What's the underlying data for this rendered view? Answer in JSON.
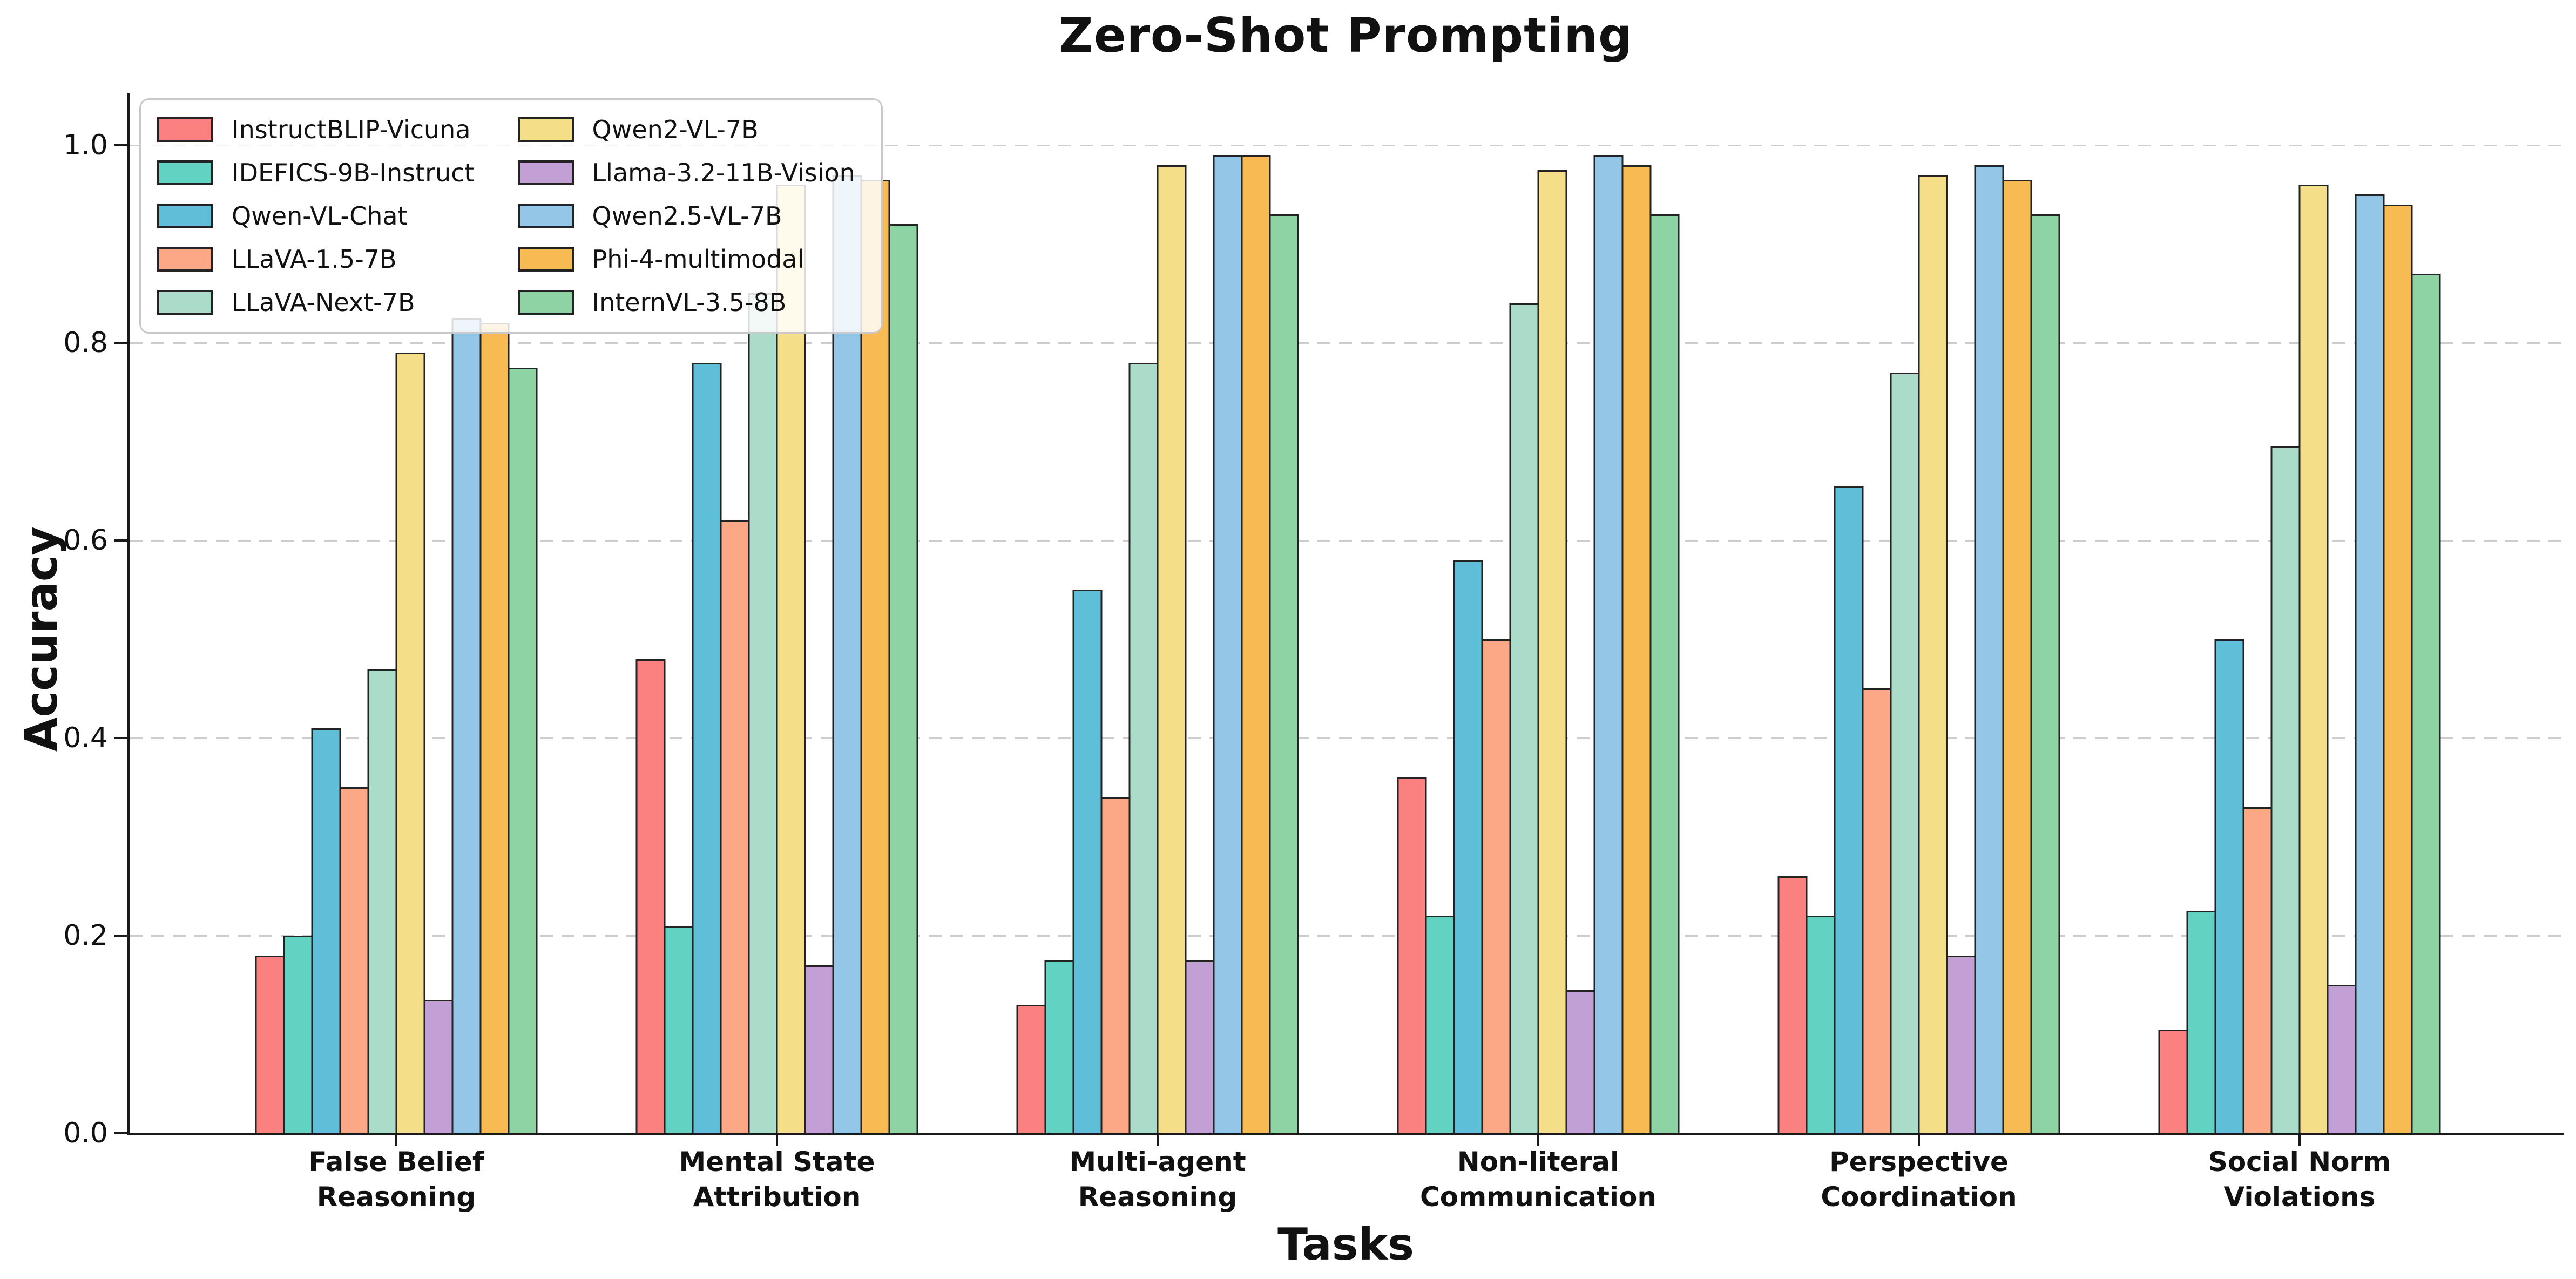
{
  "chart_data": {
    "type": "bar",
    "title": "Zero-Shot Prompting",
    "xlabel": "Tasks",
    "ylabel": "Accuracy",
    "ylim": [
      0.0,
      1.05
    ],
    "yticks": [
      0.0,
      0.2,
      0.4,
      0.6,
      0.8,
      1.0
    ],
    "ytick_labels": [
      "0.0",
      "0.2",
      "0.4",
      "0.6",
      "0.8",
      "1.0"
    ],
    "grid": {
      "axis": "y",
      "style": "dashed",
      "color": "#cdcdcd"
    },
    "bar_edge_color": "#232323",
    "legend": {
      "position": "upper-left",
      "columns": 2,
      "order": "column-major"
    },
    "categories": [
      {
        "lines": [
          "False Belief",
          "Reasoning"
        ]
      },
      {
        "lines": [
          "Mental State",
          "Attribution"
        ]
      },
      {
        "lines": [
          "Multi-agent",
          "Reasoning"
        ]
      },
      {
        "lines": [
          "Non-literal",
          "Communication"
        ]
      },
      {
        "lines": [
          "Perspective",
          "Coordination"
        ]
      },
      {
        "lines": [
          "Social Norm",
          "Violations"
        ]
      }
    ],
    "series": [
      {
        "name": "InstructBLIP-Vicuna",
        "color": "#FB8181",
        "values": [
          0.18,
          0.48,
          0.13,
          0.36,
          0.26,
          0.105
        ]
      },
      {
        "name": "IDEFICS-9B-Instruct",
        "color": "#62D2C2",
        "values": [
          0.2,
          0.21,
          0.175,
          0.22,
          0.22,
          0.225
        ]
      },
      {
        "name": "Qwen-VL-Chat",
        "color": "#5FBFD8",
        "values": [
          0.41,
          0.78,
          0.55,
          0.58,
          0.655,
          0.5
        ]
      },
      {
        "name": "LLaVA-1.5-7B",
        "color": "#FCA887",
        "values": [
          0.35,
          0.62,
          0.34,
          0.5,
          0.45,
          0.33
        ]
      },
      {
        "name": "LLaVA-Next-7B",
        "color": "#ABDBC9",
        "values": [
          0.47,
          0.85,
          0.78,
          0.84,
          0.77,
          0.695
        ]
      },
      {
        "name": "Qwen2-VL-7B",
        "color": "#F5DE88",
        "values": [
          0.79,
          0.96,
          0.98,
          0.975,
          0.97,
          0.96
        ]
      },
      {
        "name": "Llama-3.2-11B-Vision",
        "color": "#C2A0D6",
        "values": [
          0.135,
          0.17,
          0.175,
          0.145,
          0.18,
          0.15
        ]
      },
      {
        "name": "Qwen2.5-VL-7B",
        "color": "#94C6E7",
        "values": [
          0.825,
          0.97,
          0.99,
          0.99,
          0.98,
          0.95
        ]
      },
      {
        "name": "Phi-4-multimodal",
        "color": "#F8BB54",
        "values": [
          0.82,
          0.965,
          0.99,
          0.98,
          0.965,
          0.94
        ]
      },
      {
        "name": "InternVL-3.5-8B",
        "color": "#8ED3A4",
        "values": [
          0.775,
          0.92,
          0.93,
          0.93,
          0.93,
          0.87
        ]
      }
    ]
  }
}
